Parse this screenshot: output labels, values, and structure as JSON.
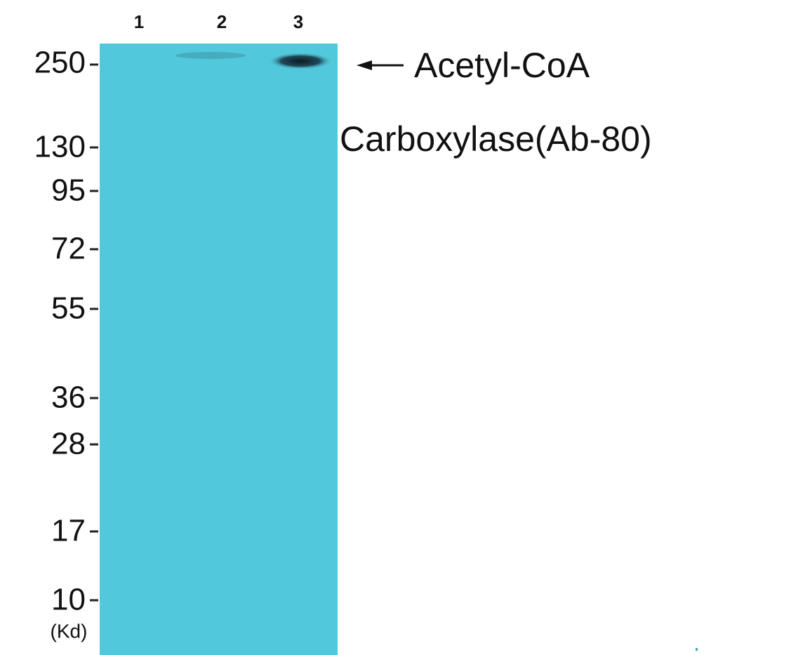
{
  "lanes": [
    "1",
    "2",
    "3"
  ],
  "markers": [
    250,
    130,
    95,
    72,
    55,
    36,
    28,
    17,
    10
  ],
  "unit": "(Kd)",
  "annotation": [
    "Acetyl-CoA",
    "Carboxylase(Ab-80)"
  ]
}
